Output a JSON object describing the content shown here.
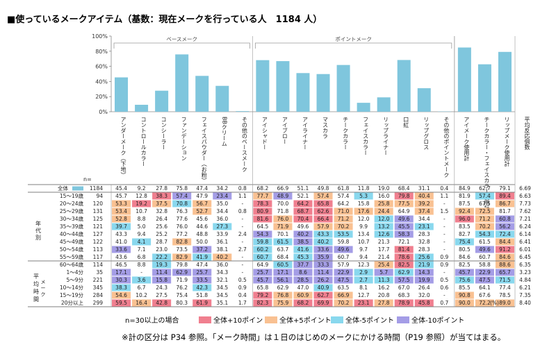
{
  "chart_data": {
    "type": "bar",
    "title": "■使っているメークアイテム（基数：現在メークを行っている人　1184 人）",
    "ylim": [
      0,
      100
    ],
    "yticks": [
      "0%",
      "20%",
      "40%",
      "60%",
      "80%",
      "100%"
    ],
    "groups": [
      {
        "label": "ベースメーク",
        "from": 0,
        "to": 6
      },
      {
        "label": "ポイントメーク",
        "from": 7,
        "to": 16
      }
    ],
    "categories": [
      "アンダーメーク（下地）",
      "コントロールカラー",
      "コンシーラー",
      "ファンデーション",
      "フェイスパウダー（お粉）",
      "BBクリーム",
      "その他のベースメーク",
      "アイシャドー",
      "アイブロー",
      "アイライナー",
      "マスカラ",
      "チークカラー",
      "フェイスカラー",
      "リップライナー",
      "口紅",
      "リップグロス",
      "その他のポイントメーク",
      "アイメーク使用計",
      "チークカラー・フェイスカラー使用計",
      "リップメーク使用計",
      "平均反応個数"
    ],
    "n_label": "n=",
    "rows": [
      {
        "group": "",
        "label": "全体",
        "n": "1184",
        "v": [
          "45.4",
          "9.2",
          "27.8",
          "75.8",
          "47.4",
          "34.2",
          "0.8",
          "68.2",
          "66.9",
          "51.1",
          "49.8",
          "61.8",
          "11.8",
          "19.0",
          "68.4",
          "31.1",
          "0.4",
          "84.9",
          "62.7",
          "79.1",
          "6.69"
        ]
      },
      {
        "group": "年代別",
        "label": "15～19歳",
        "n": "94",
        "v": [
          "45.7",
          "12.8",
          "38.3",
          "57.4",
          "47.9",
          "23.4",
          "1.1",
          "77.7",
          "48.9",
          "52.1",
          "57.4",
          "57.4",
          "5.3",
          "16.0",
          "79.8",
          "40.4",
          "1.1",
          "81.9",
          "57.4",
          "89.4",
          "6.63"
        ]
      },
      {
        "group": "年代別",
        "label": "20～24歳",
        "n": "120",
        "v": [
          "53.3",
          "19.2",
          "37.5",
          "70.8",
          "56.7",
          "35.0",
          "-",
          "78.3",
          "70.0",
          "64.2",
          "65.8",
          "64.2",
          "15.8",
          "25.8",
          "77.5",
          "39.2",
          "-",
          "87.5",
          "67.5",
          "86.7",
          "7.73"
        ]
      },
      {
        "group": "年代別",
        "label": "25～29歳",
        "n": "131",
        "v": [
          "53.4",
          "10.7",
          "32.8",
          "76.3",
          "52.7",
          "34.4",
          "0.8",
          "80.9",
          "71.8",
          "68.7",
          "62.6",
          "71.0",
          "17.6",
          "24.4",
          "64.9",
          "37.4",
          "1.5",
          "92.4",
          "72.5",
          "81.7",
          "7.62"
        ]
      },
      {
        "group": "年代別",
        "label": "30～34歳",
        "n": "125",
        "v": [
          "52.8",
          "8.8",
          "26.4",
          "77.6",
          "45.6",
          "36.0",
          "-",
          "81.6",
          "76.0",
          "70.4",
          "66.4",
          "71.2",
          "12.0",
          "12.0",
          "49.6",
          "34.4",
          "-",
          "96.0",
          "71.2",
          "60.8",
          "7.21"
        ]
      },
      {
        "group": "年代別",
        "label": "35～39歳",
        "n": "121",
        "v": [
          "39.7",
          "5.0",
          "25.6",
          "76.0",
          "44.6",
          "27.3",
          "-",
          "64.5",
          "71.9",
          "49.6",
          "57.9",
          "70.2",
          "9.9",
          "13.2",
          "45.5",
          "23.1",
          "-",
          "83.5",
          "70.2",
          "56.2",
          "6.24"
        ]
      },
      {
        "group": "年代別",
        "label": "40～44歳",
        "n": "127",
        "v": [
          "43.3",
          "9.4",
          "25.2",
          "77.2",
          "48.8",
          "33.9",
          "2.4",
          "54.3",
          "70.1",
          "40.2",
          "43.3",
          "53.5",
          "13.4",
          "12.6",
          "58.3",
          "28.3",
          "-",
          "82.7",
          "54.3",
          "72.4",
          "6.14"
        ]
      },
      {
        "group": "年代別",
        "label": "45～49歳",
        "n": "122",
        "v": [
          "41.0",
          "4.1",
          "28.7",
          "82.8",
          "50.0",
          "36.1",
          "-",
          "59.8",
          "61.5",
          "38.5",
          "40.2",
          "59.8",
          "10.7",
          "21.3",
          "72.1",
          "32.8",
          "-",
          "75.4",
          "61.5",
          "84.4",
          "6.41"
        ]
      },
      {
        "group": "年代別",
        "label": "50～54歳",
        "n": "113",
        "v": [
          "33.6",
          "7.1",
          "23.0",
          "73.5",
          "37.2",
          "38.1",
          "2.7",
          "60.2",
          "63.7",
          "41.6",
          "33.6",
          "49.6",
          "9.7",
          "17.7",
          "81.4",
          "28.3",
          "-",
          "80.5",
          "49.6",
          "91.2",
          "6.01"
        ]
      },
      {
        "group": "年代別",
        "label": "55～59歳",
        "n": "117",
        "v": [
          "43.6",
          "6.8",
          "22.2",
          "82.9",
          "41.9",
          "40.2",
          "-",
          "60.7",
          "68.4",
          "45.3",
          "35.9",
          "60.7",
          "9.4",
          "21.4",
          "78.6",
          "25.6",
          "0.9",
          "84.6",
          "60.7",
          "84.6",
          "6.45"
        ]
      },
      {
        "group": "年代別",
        "label": "60～64歳",
        "n": "114",
        "v": [
          "46.5",
          "8.8",
          "19.3",
          "79.8",
          "47.4",
          "36.0",
          "-",
          "64.9",
          "60.5",
          "37.7",
          "33.3",
          "57.9",
          "12.3",
          "25.4",
          "82.5",
          "21.9",
          "0.9",
          "82.5",
          "58.8",
          "88.6",
          "6.35"
        ]
      },
      {
        "group": "平均メーク時間",
        "label": "1～4分",
        "n": "35",
        "v": [
          "17.1",
          "-",
          "11.4",
          "62.9",
          "25.7",
          "34.3",
          "-",
          "25.7",
          "17.1",
          "8.6",
          "11.4",
          "22.9",
          "2.9",
          "5.7",
          "62.9",
          "14.3",
          "-",
          "45.7",
          "22.9",
          "65.7",
          "3.23"
        ]
      },
      {
        "group": "平均メーク時間",
        "label": "5～9分",
        "n": "221",
        "v": [
          "30.3",
          "3.6",
          "15.8",
          "71.9",
          "33.5",
          "32.1",
          "0.5",
          "45.7",
          "56.1",
          "28.5",
          "26.2",
          "47.5",
          "2.7",
          "11.3",
          "57.5",
          "19.9",
          "0.5",
          "75.6",
          "47.5",
          "71.5",
          "4.84"
        ]
      },
      {
        "group": "平均メーク時間",
        "label": "10～14分",
        "n": "345",
        "v": [
          "38.3",
          "6.7",
          "24.3",
          "76.2",
          "42.3",
          "34.5",
          "0.9",
          "65.8",
          "62.9",
          "47.0",
          "40.9",
          "63.5",
          "8.1",
          "16.2",
          "67.0",
          "26.4",
          "0.6",
          "85.5",
          "64.1",
          "77.4",
          "6.21"
        ]
      },
      {
        "group": "平均メーク時間",
        "label": "15～19分",
        "n": "284",
        "v": [
          "54.6",
          "10.2",
          "27.5",
          "75.4",
          "51.8",
          "34.5",
          "0.4",
          "79.2",
          "76.8",
          "60.9",
          "62.7",
          "66.9",
          "12.7",
          "20.8",
          "68.3",
          "32.0",
          "-",
          "90.8",
          "67.6",
          "78.5",
          "7.35"
        ]
      },
      {
        "group": "平均メーク時間",
        "label": "20分以上",
        "n": "299",
        "v": [
          "59.5",
          "16.4",
          "42.8",
          "80.3",
          "61.9",
          "35.1",
          "1.7",
          "82.3",
          "75.9",
          "68.2",
          "69.9",
          "70.2",
          "23.1",
          "27.8",
          "78.9",
          "45.8",
          "0.7",
          "90.0",
          "72.2",
          "89.0",
          "8.40"
        ]
      }
    ],
    "legend": {
      "prefix": "n=30以上の場合",
      "items": [
        {
          "label": "全体+10ポイント",
          "color": "#f07f8f"
        },
        {
          "label": "全体+5ポイント",
          "color": "#f9c192"
        },
        {
          "label": "全体-5ポイント",
          "color": "#89d8ee"
        },
        {
          "label": "全体-10ポイント",
          "color": "#a49de6"
        }
      ]
    },
    "unit": "(%)",
    "footnote": "※計の区分は P34 参照。「メーク時間」は１日のはじめのメークにかける時間（P19 参照）が当てはまる。",
    "bar_color": "#7fc6dd"
  }
}
